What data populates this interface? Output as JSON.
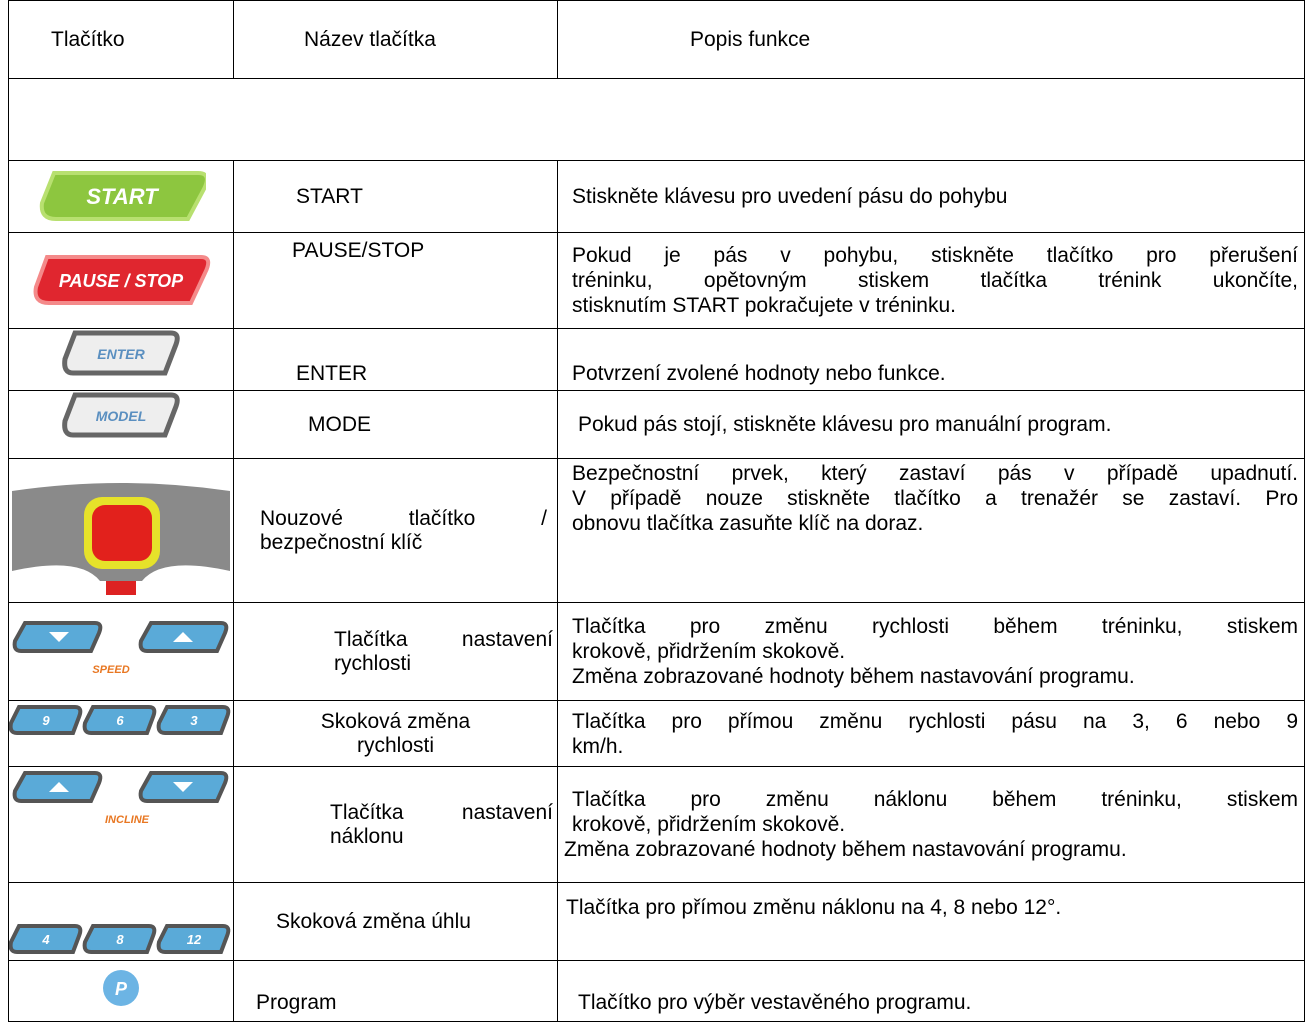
{
  "table": {
    "header": [
      "Tlačítko",
      "Název tlačítka",
      "Popis funkce"
    ],
    "rows": [
      {
        "icon": [
          "START"
        ],
        "name": [
          "START"
        ],
        "description": [
          "Stiskněte klávesu pro uvedení pásu do pohybu"
        ]
      },
      {
        "icon": [
          "PAUSE / STOP"
        ],
        "name": [
          "PAUSE/STOP"
        ],
        "description": [
          "Pokud je pás v pohybu, stiskněte tlačítko pro přerušení",
          "tréninku, opětovným stiskem tlačítka trénink ukončíte,",
          "stisknutím START pokračujete v tréninku."
        ]
      },
      {
        "icon": [
          "ENTER"
        ],
        "name": [
          "ENTER"
        ],
        "description": [
          "Potvrzení zvolené hodnoty nebo funkce."
        ]
      },
      {
        "icon": [
          "MODEL"
        ],
        "name": [
          "MODE"
        ],
        "description": [
          "Pokud pás stojí, stiskněte klávesu pro manuální program."
        ]
      },
      {
        "name": [
          "Nouzové tlačítko /",
          "bezpečnostní klíč"
        ],
        "description": [
          "Bezpečnostní prvek, který zastaví pás v případě upadnutí.",
          "V případě nouze stiskněte tlačítko a trenažér se zastaví. Pro",
          "obnovu tlačítka zasuňte klíč na doraz."
        ]
      },
      {
        "icon": [
          "SPEED"
        ],
        "name": [
          "Tlačítka nastavení",
          "rychlosti"
        ],
        "description": [
          "Tlačítka pro změnu rychlosti během tréninku, stiskem",
          "krokově, přidržením skokově.",
          "Změna zobrazované hodnoty během nastavování programu."
        ]
      },
      {
        "icon": [
          "9",
          "6",
          "3"
        ],
        "name": [
          "Skoková změna",
          "rychlosti"
        ],
        "description": [
          "Tlačítka pro přímou změnu rychlosti pásu na 3, 6 nebo 9",
          "km/h."
        ]
      },
      {
        "icon": [
          "INCLINE"
        ],
        "name": [
          "Tlačítka nastavení",
          "náklonu"
        ],
        "description": [
          "Tlačítka pro změnu náklonu během tréninku, stiskem",
          "krokově, přidržením skokově.",
          "Změna zobrazované hodnoty během nastavování programu."
        ]
      },
      {
        "icon": [
          "4",
          "8",
          "12"
        ],
        "name": [
          "Skoková změna úhlu"
        ],
        "description": [
          "Tlačítka pro přímou změnu náklonu na 4, 8 nebo 12°."
        ]
      },
      {
        "icon": [
          "P"
        ],
        "name": [
          "Program"
        ],
        "description": [
          "Tlačítko pro výběr vestavěného programu."
        ]
      }
    ]
  }
}
